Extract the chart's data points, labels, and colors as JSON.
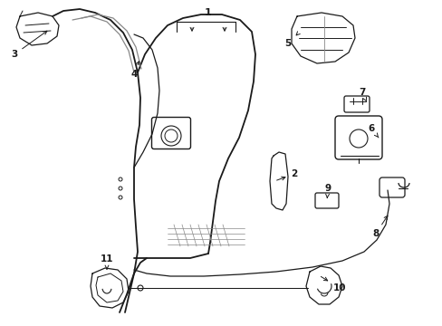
{
  "bg_color": "#ffffff",
  "line_color": "#1a1a1a",
  "gray_color": "#888888",
  "figsize": [
    4.89,
    3.6
  ],
  "dpi": 100
}
